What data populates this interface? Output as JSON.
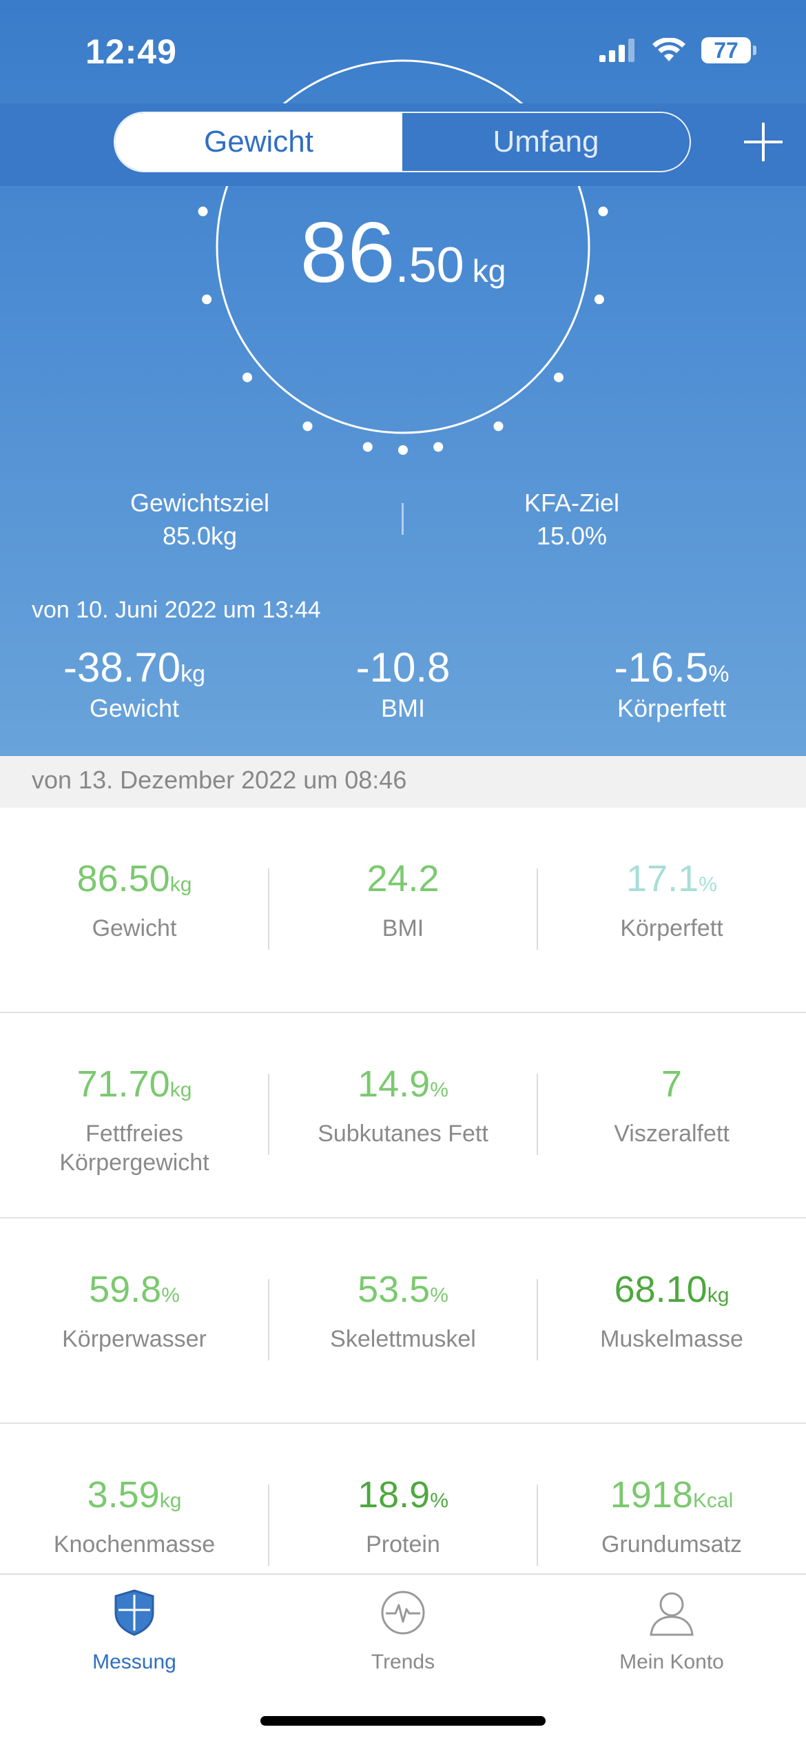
{
  "status_bar": {
    "time": "12:49",
    "battery": "77",
    "icons": [
      "signal-icon",
      "wifi-icon",
      "battery-icon"
    ]
  },
  "segment": {
    "active": "Gewicht",
    "inactive": "Umfang"
  },
  "header": {
    "add_icon": "plus-icon"
  },
  "current_weight": {
    "integer": "86",
    "decimal": ".50",
    "unit": "kg"
  },
  "goals": [
    {
      "label": "Gewichtsziel",
      "value": "85.0kg"
    },
    {
      "label": "KFA-Ziel",
      "value": "15.0%"
    }
  ],
  "since": "von 10. Juni 2022 um 13:44",
  "changes": [
    {
      "value": "-38.70",
      "unit": "kg",
      "label": "Gewicht"
    },
    {
      "value": "-10.8",
      "unit": "",
      "label": "BMI"
    },
    {
      "value": "-16.5",
      "unit": "%",
      "label": "Körperfett"
    }
  ],
  "measurement_date": "von 13. Dezember 2022 um 08:46",
  "metrics": [
    [
      {
        "value": "86.50",
        "unit": "kg",
        "label": "Gewicht",
        "color": "#7bc96f"
      },
      {
        "value": "24.2",
        "unit": "",
        "label": "BMI",
        "color": "#7bc96f"
      },
      {
        "value": "17.1",
        "unit": "%",
        "label": "Körperfett",
        "color": "#a8ded7"
      }
    ],
    [
      {
        "value": "71.70",
        "unit": "kg",
        "label": "Fettfreies Körpergewicht",
        "color": "#7bc96f"
      },
      {
        "value": "14.9",
        "unit": "%",
        "label": "Subkutanes Fett",
        "color": "#7bc96f"
      },
      {
        "value": "7",
        "unit": "",
        "label": "Viszeralfett",
        "color": "#7bc96f"
      }
    ],
    [
      {
        "value": "59.8",
        "unit": "%",
        "label": "Körperwasser",
        "color": "#7bc96f"
      },
      {
        "value": "53.5",
        "unit": "%",
        "label": "Skelettmuskel",
        "color": "#7bc96f"
      },
      {
        "value": "68.10",
        "unit": "kg",
        "label": "Muskelmasse",
        "color": "#4ea83f"
      }
    ],
    [
      {
        "value": "3.59",
        "unit": "kg",
        "label": "Knochenmasse",
        "color": "#7bc96f"
      },
      {
        "value": "18.9",
        "unit": "%",
        "label": "Protein",
        "color": "#4ea83f"
      },
      {
        "value": "1918",
        "unit": "Kcal",
        "label": "Grundumsatz",
        "color": "#7bc96f"
      }
    ]
  ],
  "nav": [
    {
      "label": "Messung",
      "icon": "shield-icon",
      "active": true
    },
    {
      "label": "Trends",
      "icon": "heartbeat-icon",
      "active": false
    },
    {
      "label": "Mein Konto",
      "icon": "user-icon",
      "active": false
    }
  ],
  "colors": {
    "primary": "#3a7cc9",
    "accent_green": "#7bc96f",
    "nav_active": "#2f6fc2",
    "nav_inactive": "#8a8a8a"
  }
}
